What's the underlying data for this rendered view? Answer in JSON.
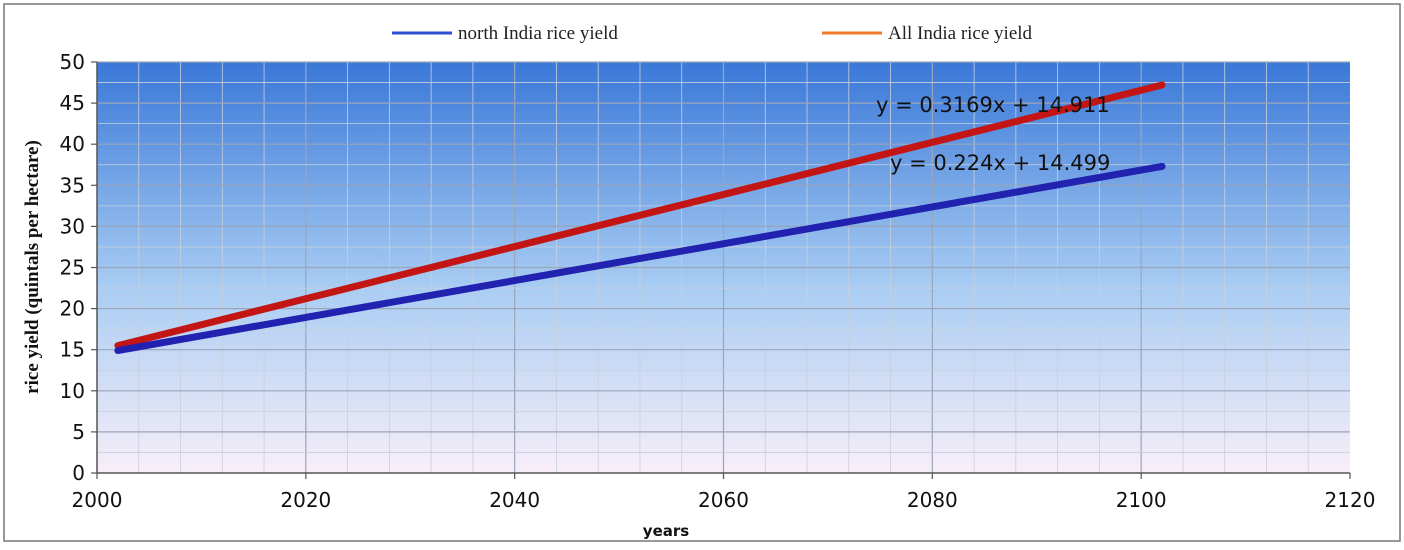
{
  "chart_data": {
    "type": "line",
    "title": "",
    "xlabel": "years",
    "ylabel": "rice yield (quintals per hectare)",
    "xlim": [
      2000,
      2120
    ],
    "ylim": [
      0,
      50
    ],
    "x_ticks": [
      2000,
      2020,
      2040,
      2060,
      2080,
      2100,
      2120
    ],
    "y_ticks": [
      0,
      5,
      10,
      15,
      20,
      25,
      30,
      35,
      40,
      45,
      50
    ],
    "x_minor_step": 4,
    "y_minor_step": 2.5,
    "grid": true,
    "legend_position": "top",
    "series": [
      {
        "name": "north India rice yield",
        "legend_color": "#2d4fd6",
        "line_color": "#2222b0",
        "x": [
          2002,
          2102
        ],
        "y": [
          14.9,
          37.3
        ],
        "trendline_label": "y = 0.224x + 14.499"
      },
      {
        "name": "All India rice yield",
        "legend_color": "#f07a2a",
        "line_color": "#c41515",
        "x": [
          2002,
          2102
        ],
        "y": [
          15.5,
          47.2
        ],
        "trendline_label": "y = 0.3169x + 14.911"
      }
    ],
    "colors": {
      "plot_top": "#3a78d8",
      "plot_mid": "#a9cdf3",
      "plot_bottom": "#f8eef8",
      "grid": "#c8cfdc",
      "axis": "#555555",
      "frame": "#777777"
    }
  }
}
